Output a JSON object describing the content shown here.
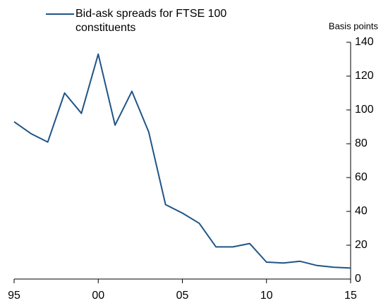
{
  "chart_data": {
    "type": "line",
    "y_axis_label": "Basis points",
    "x": [
      1995,
      1996,
      1997,
      1998,
      1999,
      2000,
      2001,
      2002,
      2003,
      2004,
      2005,
      2006,
      2007,
      2008,
      2009,
      2010,
      2011,
      2012,
      2013,
      2014,
      2015
    ],
    "series": [
      {
        "name": "Bid-ask spreads for FTSE 100 constituents",
        "color": "#1f5587",
        "values": [
          93,
          86,
          81,
          110,
          98,
          133,
          91,
          111,
          87,
          44,
          39,
          33,
          19,
          19,
          21,
          10,
          9.5,
          10.5,
          8,
          7,
          6.5
        ]
      }
    ],
    "xlim": [
      1995,
      2015
    ],
    "xticks": [
      {
        "value": 1995,
        "label": "95"
      },
      {
        "value": 2000,
        "label": "00"
      },
      {
        "value": 2005,
        "label": "05"
      },
      {
        "value": 2010,
        "label": "10"
      },
      {
        "value": 2015,
        "label": "15"
      }
    ],
    "ylim": [
      0,
      140
    ],
    "yticks": [
      0,
      20,
      40,
      60,
      80,
      100,
      120,
      140
    ],
    "grid": false
  }
}
